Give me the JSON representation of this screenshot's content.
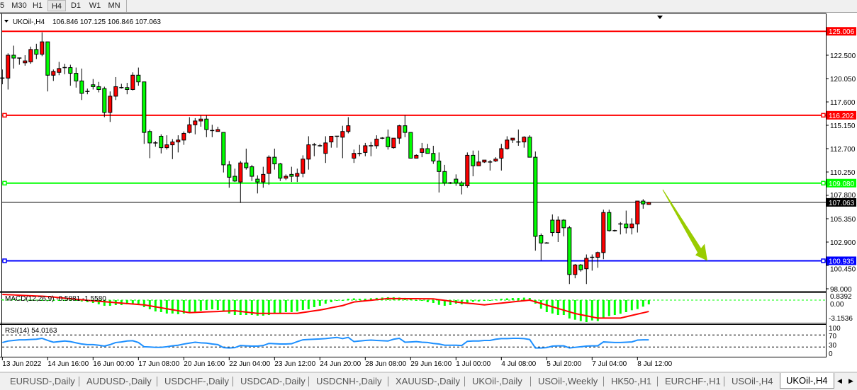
{
  "toolbar": {
    "timeframes": [
      {
        "label": "5",
        "selected": false
      },
      {
        "label": "M30",
        "selected": false
      },
      {
        "label": "H1",
        "selected": false
      },
      {
        "label": "H4",
        "selected": true
      },
      {
        "label": "D1",
        "selected": false
      },
      {
        "label": "W1",
        "selected": false
      },
      {
        "label": "MN",
        "selected": false
      }
    ]
  },
  "chart": {
    "symbol_label": "UKOil-,H4",
    "ohlc_label": "106.846 107.125 106.846 107.063",
    "dropdown_icon": "triangle-down-icon",
    "shift_marker_icon": "triangle-down-icon",
    "price_ticks": [
      "122.500",
      "120.050",
      "117.600",
      "115.150",
      "112.700",
      "110.250",
      "107.800",
      "105.350",
      "102.900",
      "100.450",
      "98.000"
    ],
    "levels": [
      {
        "value": "125.006",
        "color": "#ff0000"
      },
      {
        "value": "116.202",
        "color": "#ff0000"
      },
      {
        "value": "109.080",
        "color": "#00ff00"
      },
      {
        "value": "100.935",
        "color": "#0000ff"
      }
    ],
    "current_price": {
      "value": "107.063",
      "color": "#000000"
    },
    "annotation_arrow": {
      "from_price": 107.8,
      "to_price": 100.935,
      "color": "#99cc00",
      "direction": "down"
    },
    "bull_color": "#ff0000",
    "bear_color": "#00ff00",
    "time_labels": [
      "13 Jun 2022",
      "14 Jun 16:00",
      "16 Jun 00:00",
      "17 Jun 08:00",
      "20 Jun 16:00",
      "22 Jun 04:00",
      "23 Jun 12:00",
      "24 Jun 20:00",
      "28 Jun 08:00",
      "29 Jun 16:00",
      "1 Jul 00:00",
      "4 Jul 08:00",
      "5 Jul 20:00",
      "7 Jul 04:00",
      "8 Jul 12:00"
    ]
  },
  "macd": {
    "label": "MACD(12,26,9) -0.5881 -1.5580",
    "ticks": [
      "0.8392",
      "0.00",
      "-3.1536"
    ],
    "hist_color": "#00ff00",
    "signal_color": "#ff0000"
  },
  "rsi": {
    "label": "RSI(14) 54.0163",
    "ticks": [
      "100",
      "70",
      "30",
      "0"
    ],
    "line_color": "#1e90ff"
  },
  "tabs": [
    {
      "label": "EURUSD-,Daily",
      "active": false
    },
    {
      "label": "AUDUSD-,Daily",
      "active": false
    },
    {
      "label": "USDCHF-,Daily",
      "active": false
    },
    {
      "label": "USDCAD-,Daily",
      "active": false
    },
    {
      "label": "USDCNH-,Daily",
      "active": false
    },
    {
      "label": "XAUUSD-,Daily",
      "active": false
    },
    {
      "label": "UKOil-,Daily",
      "active": false
    },
    {
      "label": "USOil-,Weekly",
      "active": false
    },
    {
      "label": "HK50-,H1",
      "active": false
    },
    {
      "label": "EURCHF-,H1",
      "active": false
    },
    {
      "label": "USOil-,H4",
      "active": false
    },
    {
      "label": "UKOil-,H4",
      "active": true
    }
  ],
  "chart_data": {
    "type": "candlestick",
    "symbol": "UKOil-",
    "timeframe": "H4",
    "ylim": [
      98.0,
      125.5
    ],
    "grid": false,
    "ohlc": [
      [
        120.1,
        121.0,
        119.45,
        120.1
      ],
      [
        120.1,
        122.7,
        118.9,
        122.5
      ],
      [
        122.5,
        123.5,
        121.1,
        122.2
      ],
      [
        122.2,
        122.2,
        121.5,
        122.2
      ],
      [
        121.7,
        122.5,
        121.4,
        121.9
      ],
      [
        121.8,
        123.4,
        121.6,
        123.1
      ],
      [
        123.1,
        123.7,
        122.1,
        122.6
      ],
      [
        122.6,
        124.9,
        122.4,
        123.9
      ],
      [
        123.9,
        123.9,
        118.7,
        120.4
      ],
      [
        120.4,
        121.0,
        119.8,
        120.8
      ],
      [
        120.7,
        121.8,
        120.4,
        121.1
      ],
      [
        121.2,
        121.6,
        120.5,
        121.2
      ],
      [
        121.2,
        121.5,
        119.3,
        120.6
      ],
      [
        120.6,
        121.2,
        119.1,
        119.8
      ],
      [
        119.8,
        121.1,
        117.8,
        118.5
      ],
      [
        118.7,
        119.0,
        118.4,
        118.7
      ],
      [
        119.4,
        120.0,
        118.9,
        119.2
      ],
      [
        119.2,
        119.7,
        118.6,
        118.9
      ],
      [
        119.0,
        119.2,
        116.0,
        116.5
      ],
      [
        116.5,
        118.7,
        115.5,
        118.2
      ],
      [
        118.2,
        120.2,
        117.8,
        119.2
      ],
      [
        119.1,
        119.5,
        119.0,
        119.1
      ],
      [
        119.1,
        119.6,
        118.4,
        118.9
      ],
      [
        118.9,
        120.7,
        118.8,
        120.4
      ],
      [
        120.4,
        121.2,
        119.3,
        119.7
      ],
      [
        119.7,
        119.7,
        113.2,
        114.4
      ],
      [
        114.5,
        114.7,
        111.7,
        113.3
      ],
      [
        113.3,
        113.5,
        112.9,
        113.3
      ],
      [
        114.0,
        114.2,
        112.2,
        112.8
      ],
      [
        112.8,
        114.1,
        112.6,
        113.1
      ],
      [
        113.1,
        113.7,
        111.6,
        113.4
      ],
      [
        113.4,
        114.1,
        112.3,
        113.6
      ],
      [
        113.6,
        114.5,
        113.1,
        114.3
      ],
      [
        114.4,
        116.0,
        114.3,
        115.2
      ],
      [
        115.2,
        115.9,
        114.2,
        115.6
      ],
      [
        115.6,
        116.2,
        115.0,
        115.8
      ],
      [
        115.8,
        116.2,
        113.9,
        114.7
      ],
      [
        114.6,
        115.2,
        113.9,
        114.6
      ],
      [
        114.5,
        115.0,
        114.5,
        114.7
      ],
      [
        114.4,
        114.4,
        110.2,
        111.0
      ],
      [
        111.0,
        111.4,
        108.6,
        109.7
      ],
      [
        109.8,
        110.6,
        109.2,
        109.3
      ],
      [
        109.2,
        111.4,
        107.0,
        111.2
      ],
      [
        111.2,
        112.7,
        110.5,
        110.7
      ],
      [
        110.8,
        111.0,
        109.3,
        109.8
      ],
      [
        109.5,
        109.9,
        108.0,
        109.2
      ],
      [
        109.2,
        110.8,
        108.6,
        110.0
      ],
      [
        110.1,
        112.0,
        108.9,
        111.8
      ],
      [
        111.8,
        112.7,
        110.5,
        111.1
      ],
      [
        111.1,
        111.2,
        109.3,
        109.6
      ],
      [
        109.6,
        110.0,
        109.4,
        109.8
      ],
      [
        110.0,
        110.8,
        109.2,
        109.8
      ],
      [
        109.8,
        110.6,
        109.2,
        110.1
      ],
      [
        110.1,
        112.0,
        109.7,
        111.6
      ],
      [
        111.6,
        114.0,
        110.5,
        113.1
      ],
      [
        113.1,
        113.3,
        111.9,
        113.1
      ],
      [
        113.0,
        113.2,
        112.9,
        113.0
      ],
      [
        112.2,
        114.0,
        111.2,
        113.3
      ],
      [
        113.4,
        114.0,
        112.8,
        114.0
      ],
      [
        114.0,
        114.0,
        112.8,
        114.0
      ],
      [
        113.9,
        115.1,
        111.7,
        114.5
      ],
      [
        114.5,
        116.0,
        114.3,
        115.1
      ],
      [
        111.7,
        112.6,
        111.2,
        112.2
      ],
      [
        112.2,
        113.1,
        111.9,
        112.2
      ],
      [
        112.3,
        113.3,
        111.9,
        113.0
      ],
      [
        113.0,
        113.4,
        111.9,
        113.0
      ],
      [
        113.0,
        114.1,
        112.7,
        113.7
      ],
      [
        113.8,
        113.9,
        113.7,
        113.8
      ],
      [
        113.9,
        114.7,
        112.6,
        112.9
      ],
      [
        112.8,
        113.8,
        112.7,
        113.8
      ],
      [
        113.8,
        115.2,
        113.2,
        115.1
      ],
      [
        115.1,
        116.2,
        113.9,
        114.4
      ],
      [
        114.4,
        114.4,
        111.7,
        111.7
      ],
      [
        111.7,
        112.1,
        111.7,
        112.0
      ],
      [
        112.3,
        113.3,
        111.8,
        112.7
      ],
      [
        112.7,
        113.2,
        112.2,
        112.2
      ],
      [
        112.2,
        113.0,
        111.1,
        111.4
      ],
      [
        111.4,
        112.3,
        108.1,
        110.3
      ],
      [
        110.3,
        111.0,
        108.8,
        109.1
      ],
      [
        109.1,
        109.2,
        109.0,
        109.1
      ],
      [
        109.5,
        110.0,
        108.8,
        109.1
      ],
      [
        109.1,
        109.3,
        107.9,
        108.8
      ],
      [
        108.8,
        112.3,
        108.6,
        112.0
      ],
      [
        112.0,
        112.5,
        109.8,
        110.9
      ],
      [
        110.9,
        112.5,
        110.9,
        111.3
      ],
      [
        111.3,
        111.5,
        111.2,
        111.5
      ],
      [
        111.3,
        111.5,
        110.4,
        111.3
      ],
      [
        111.4,
        111.8,
        111.3,
        111.6
      ],
      [
        111.7,
        113.2,
        110.4,
        112.7
      ],
      [
        112.7,
        114.0,
        112.6,
        113.6
      ],
      [
        113.6,
        113.8,
        113.3,
        113.8
      ],
      [
        113.4,
        114.7,
        113.0,
        113.4
      ],
      [
        113.4,
        114.0,
        112.8,
        113.9
      ],
      [
        113.9,
        114.1,
        111.8,
        111.8
      ],
      [
        111.8,
        112.4,
        102.0,
        103.5
      ],
      [
        103.6,
        103.8,
        101.0,
        102.8
      ],
      [
        102.8,
        102.9,
        102.8,
        102.8
      ],
      [
        105.2,
        105.8,
        103.5,
        103.9
      ],
      [
        103.9,
        105.6,
        102.9,
        105.2
      ],
      [
        105.2,
        105.3,
        103.5,
        104.4
      ],
      [
        104.4,
        104.6,
        98.5,
        99.5
      ],
      [
        99.5,
        100.6,
        99.1,
        100.5
      ],
      [
        100.5,
        100.6,
        99.8,
        100.0
      ],
      [
        100.1,
        101.6,
        98.5,
        101.2
      ],
      [
        101.3,
        101.6,
        99.9,
        101.3
      ],
      [
        101.3,
        101.9,
        100.2,
        101.8
      ],
      [
        101.8,
        106.3,
        101.1,
        106.0
      ],
      [
        106.0,
        106.3,
        104.0,
        104.1
      ],
      [
        104.1,
        104.2,
        104.0,
        104.1
      ],
      [
        104.8,
        105.0,
        103.7,
        104.8
      ],
      [
        104.8,
        106.2,
        103.8,
        104.4
      ],
      [
        104.4,
        105.4,
        103.7,
        104.8
      ],
      [
        104.8,
        107.2,
        103.9,
        107.2
      ],
      [
        107.2,
        107.4,
        106.4,
        106.9
      ],
      [
        106.846,
        107.125,
        106.846,
        107.063
      ]
    ],
    "macd_hist": [
      0.1,
      0.1,
      0.1,
      0.1,
      0.05,
      0.05,
      0.05,
      0,
      0,
      0,
      0,
      -0.05,
      -0.1,
      -0.1,
      -0.19,
      -0.29,
      -0.39,
      -0.58,
      -0.78,
      -0.78,
      -0.68,
      -0.68,
      -0.58,
      -0.58,
      -0.68,
      -0.97,
      -1.26,
      -1.55,
      -1.65,
      -1.84,
      -1.84,
      -1.94,
      -1.84,
      -1.75,
      -1.65,
      -1.46,
      -1.36,
      -1.26,
      -1.36,
      -1.55,
      -1.84,
      -2.04,
      -2.04,
      -2.04,
      -2.04,
      -2.14,
      -2.14,
      -2.04,
      -1.84,
      -1.75,
      -1.65,
      -1.65,
      -1.55,
      -1.36,
      -1.26,
      -0.97,
      -0.78,
      -0.49,
      -0.29,
      -0.1,
      0,
      0.19,
      0.24,
      0.19,
      0.2,
      0.25,
      0.3,
      0.35,
      0.4,
      0.4,
      0.35,
      0.3,
      0.15,
      0,
      -0.1,
      -0.29,
      -0.39,
      -0.65,
      -0.78,
      -0.68,
      -0.49,
      -0.58,
      -0.39,
      -0.24,
      -0.19,
      -0.1,
      0,
      0.1,
      0.19,
      0.24,
      0.29,
      0.29,
      0.34,
      0.29,
      -0.49,
      -1.17,
      -1.65,
      -1.84,
      -2.04,
      -2.04,
      -2.52,
      -2.69,
      -2.88,
      -3.01,
      -2.79,
      -2.88,
      -2.43,
      -2.2,
      -2.04,
      -1.87,
      -1.65,
      -1.39,
      -1.23,
      -0.9,
      -0.5881
    ],
    "macd_signal": [
      0.78,
      0.74,
      0.71,
      0.67,
      0.63,
      0.6,
      0.56,
      0.53,
      0.49,
      0.42,
      0.34,
      0.27,
      0.19,
      0.12,
      0.05,
      -0.03,
      -0.1,
      -0.16,
      -0.22,
      -0.28,
      -0.35,
      -0.41,
      -0.47,
      -0.53,
      -0.59,
      -0.65,
      -0.78,
      -0.92,
      -1.05,
      -1.19,
      -1.32,
      -1.45,
      -1.59,
      -1.72,
      -1.69,
      -1.65,
      -1.62,
      -1.59,
      -1.56,
      -1.52,
      -1.49,
      -1.46,
      -1.55,
      -1.64,
      -1.73,
      -1.82,
      -1.82,
      -1.82,
      -1.82,
      -1.82,
      -1.82,
      -1.82,
      -1.82,
      -1.7,
      -1.59,
      -1.47,
      -1.36,
      -1.21,
      -1.05,
      -0.9,
      -0.75,
      -0.5,
      -0.26,
      -0.18,
      -0.1,
      -0.02,
      0.06,
      0.14,
      0.22,
      0.21,
      0.21,
      0.2,
      0.19,
      0.19,
      0.18,
      0.18,
      0.17,
      0.06,
      -0.04,
      -0.15,
      -0.26,
      -0.34,
      -0.42,
      -0.49,
      -0.57,
      -0.65,
      -0.57,
      -0.49,
      -0.41,
      -0.33,
      -0.24,
      -0.16,
      -0.08,
      0,
      -0.23,
      -0.46,
      -0.69,
      -0.92,
      -1.15,
      -1.38,
      -1.61,
      -1.84,
      -2.0,
      -2.15,
      -2.31,
      -2.46,
      -2.46,
      -2.46,
      -2.46,
      -2.46,
      -2.28,
      -2.1,
      -1.92,
      -1.74,
      -1.558
    ],
    "macd_ylim": [
      -3.1536,
      0.8392
    ],
    "rsi": [
      45,
      50,
      52,
      54,
      54,
      55,
      56,
      59,
      52,
      46,
      48,
      50,
      48,
      44,
      40,
      38,
      38,
      36,
      33,
      38,
      45,
      47,
      50,
      51,
      45,
      31,
      30,
      29,
      29,
      31,
      34,
      36,
      40,
      43,
      46,
      44,
      43,
      40,
      38,
      28,
      27,
      28,
      35,
      34,
      33,
      33,
      35,
      42,
      41,
      40,
      40,
      41,
      48,
      54,
      55,
      56,
      57,
      58,
      60,
      62,
      58,
      62,
      48,
      50,
      52,
      53,
      52,
      51,
      50,
      56,
      59,
      46,
      47,
      48,
      46,
      45,
      42,
      40,
      36,
      36,
      36,
      35,
      49,
      50,
      50,
      52,
      52,
      56,
      58,
      58,
      59,
      59,
      58,
      55,
      27,
      27,
      28,
      33,
      34,
      34,
      27,
      29,
      31,
      33,
      34,
      34,
      47,
      46,
      45,
      45,
      46,
      47,
      53,
      54,
      54.0163
    ],
    "rsi_levels": [
      70,
      30
    ],
    "rsi_ylim": [
      0,
      100
    ]
  }
}
